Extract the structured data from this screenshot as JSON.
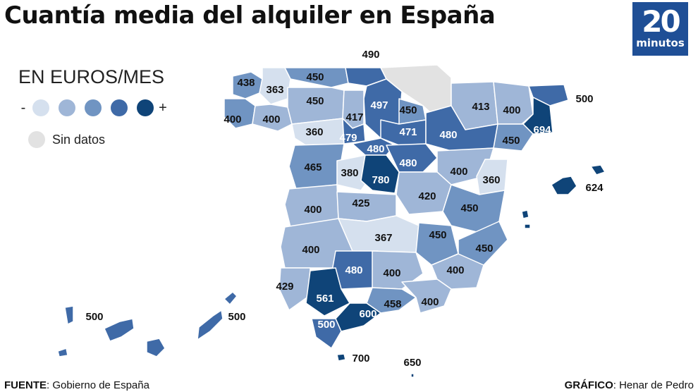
{
  "title": "Cuantía media del alquiler en España",
  "logo": {
    "number": "20",
    "word": "minutos",
    "color": "#1f4f96"
  },
  "legend": {
    "title": "EN EUROS/MES",
    "minus": "-",
    "plus": "+",
    "scale_colors": [
      "#d5e0ee",
      "#9fb6d7",
      "#7094c2",
      "#3f6aa7",
      "#0f4478"
    ],
    "no_data_label": "Sin datos",
    "no_data_color": "#e2e2e2"
  },
  "regions": [
    {
      "label": "438",
      "value": 438
    },
    {
      "label": "363",
      "value": 363
    },
    {
      "label": "450",
      "value": 450
    },
    {
      "label": "490",
      "value": 490
    },
    {
      "label": "450",
      "value": 450
    },
    {
      "label": "400",
      "value": 400
    },
    {
      "label": "400",
      "value": 400
    },
    {
      "label": "497",
      "value": 497
    },
    {
      "label": "450",
      "value": 450
    },
    {
      "label": "413",
      "value": 413
    },
    {
      "label": "400",
      "value": 400
    },
    {
      "label": "500",
      "value": 500
    },
    {
      "label": "417",
      "value": 417
    },
    {
      "label": "360",
      "value": 360
    },
    {
      "label": "479",
      "value": 479
    },
    {
      "label": "471",
      "value": 471
    },
    {
      "label": "480",
      "value": 480
    },
    {
      "label": "694",
      "value": 694
    },
    {
      "label": "450",
      "value": 450
    },
    {
      "label": "480",
      "value": 480
    },
    {
      "label": "465",
      "value": 465
    },
    {
      "label": "380",
      "value": 380
    },
    {
      "label": "480",
      "value": 480
    },
    {
      "label": "780",
      "value": 780
    },
    {
      "label": "400",
      "value": 400
    },
    {
      "label": "360",
      "value": 360
    },
    {
      "label": "624",
      "value": 624
    },
    {
      "label": "420",
      "value": 420
    },
    {
      "label": "400",
      "value": 400
    },
    {
      "label": "425",
      "value": 425
    },
    {
      "label": "450",
      "value": 450
    },
    {
      "label": "367",
      "value": 367
    },
    {
      "label": "450",
      "value": 450
    },
    {
      "label": "400",
      "value": 400
    },
    {
      "label": "450",
      "value": 450
    },
    {
      "label": "480",
      "value": 480
    },
    {
      "label": "400",
      "value": 400
    },
    {
      "label": "400",
      "value": 400
    },
    {
      "label": "429",
      "value": 429
    },
    {
      "label": "561",
      "value": 561
    },
    {
      "label": "458",
      "value": 458
    },
    {
      "label": "400",
      "value": 400
    },
    {
      "label": "600",
      "value": 600
    },
    {
      "label": "500",
      "value": 500
    },
    {
      "label": "500",
      "value": 500
    },
    {
      "label": "500",
      "value": 500
    },
    {
      "label": "700",
      "value": 700
    },
    {
      "label": "650",
      "value": 650
    }
  ],
  "footer": {
    "source_key": "FUENTE",
    "source_value": ": Gobierno de España",
    "credit_key": "GRÁFICO",
    "credit_value": ": Henar de Pedro"
  }
}
